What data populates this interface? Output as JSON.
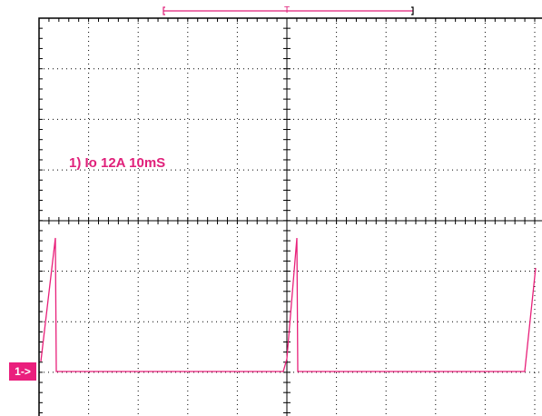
{
  "trigger_marker": "T",
  "channel_marker": "1->",
  "annotation": "1) Io 12A 10mS"
}
